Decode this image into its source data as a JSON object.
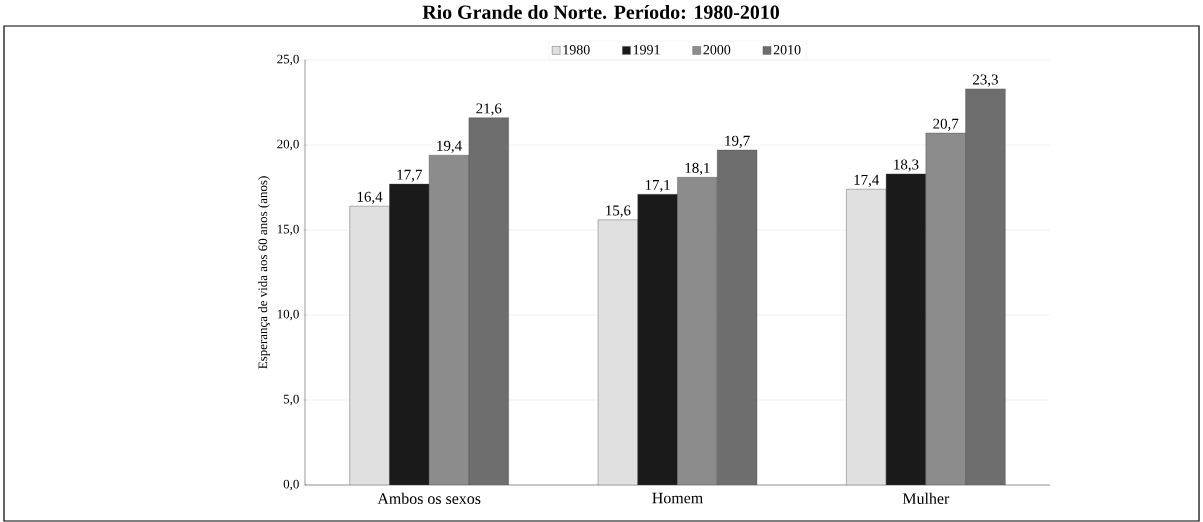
{
  "chart_data": {
    "type": "bar",
    "title": "Rio Grande do Norte. Período: 1980-2010",
    "ylabel": "Esperança de vida aos 60 anos (anos)",
    "categories": [
      "Ambos os sexos",
      "Homem",
      "Mulher"
    ],
    "series": [
      {
        "name": "1980",
        "color": "#e0e0e0",
        "values": [
          16.4,
          15.6,
          17.4
        ],
        "value_labels": [
          "16,4",
          "15,6",
          "17,4"
        ]
      },
      {
        "name": "1991",
        "color": "#1a1a1a",
        "values": [
          17.7,
          17.1,
          18.3
        ],
        "value_labels": [
          "17,7",
          "17,1",
          "18,3"
        ]
      },
      {
        "name": "2000",
        "color": "#8c8c8c",
        "values": [
          19.4,
          18.1,
          20.7
        ],
        "value_labels": [
          "19,4",
          "18,1",
          "20,7"
        ]
      },
      {
        "name": "2010",
        "color": "#6e6e6e",
        "values": [
          21.6,
          19.7,
          23.3
        ],
        "value_labels": [
          "21,6",
          "19,7",
          "23,3"
        ]
      }
    ],
    "ylim": [
      0,
      25
    ],
    "yticks": [
      {
        "value": 0,
        "label": "0,0"
      },
      {
        "value": 5,
        "label": "5,0"
      },
      {
        "value": 10,
        "label": "10,0"
      },
      {
        "value": 15,
        "label": "15,0"
      },
      {
        "value": 20,
        "label": "20,0"
      },
      {
        "value": 25,
        "label": "25,0"
      }
    ],
    "grid": "y",
    "legend": "top"
  }
}
